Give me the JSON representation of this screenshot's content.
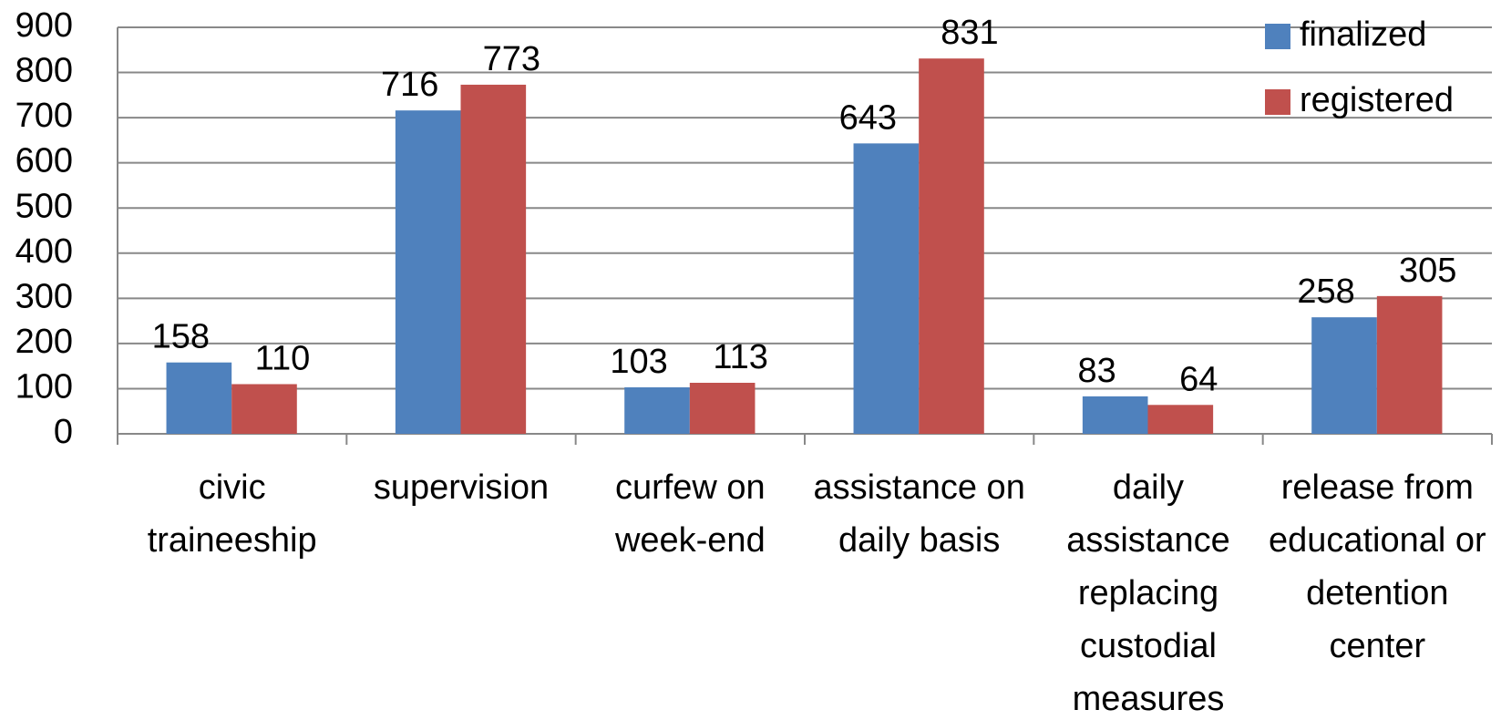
{
  "chart_data": {
    "type": "bar",
    "categories": [
      "civic traineeship",
      "supervision",
      "curfew on week-end",
      "assistance on daily basis",
      "daily assistance replacing custodial measures",
      "release from educational or detention center"
    ],
    "series": [
      {
        "name": "finalized",
        "color": "#4f81bd",
        "values": [
          158,
          716,
          103,
          643,
          83,
          258
        ]
      },
      {
        "name": "registered",
        "color": "#c0504d",
        "values": [
          110,
          773,
          113,
          831,
          64,
          305
        ]
      }
    ],
    "ylim": [
      0,
      900
    ],
    "yticks": [
      0,
      100,
      200,
      300,
      400,
      500,
      600,
      700,
      800,
      900
    ],
    "grid": true,
    "legend": "top-right"
  }
}
